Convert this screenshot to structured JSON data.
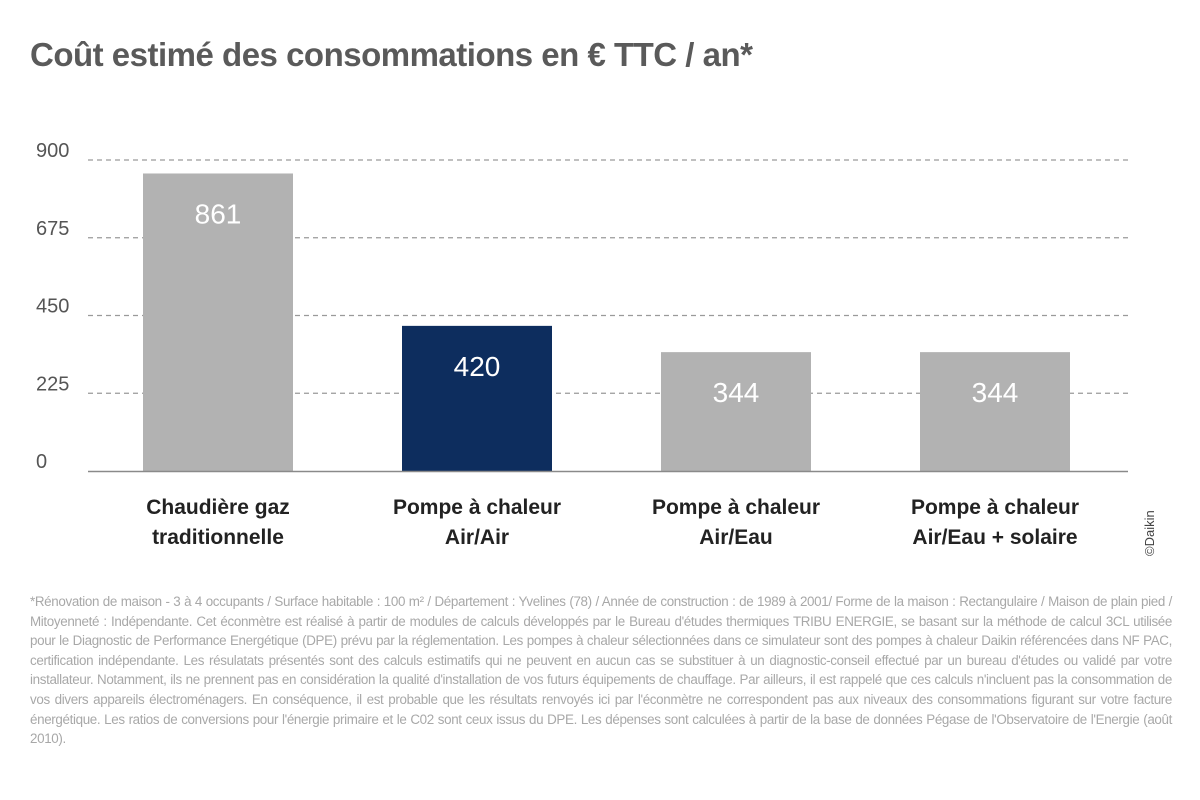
{
  "title": "Coût estimé des consommations en € TTC / an*",
  "colors": {
    "default_bar": "#b2b2b2",
    "highlight_bar": "#0d2d5e",
    "grid": "#9a9a9a",
    "axis": "#8a8a8a",
    "value_label": "#ffffff"
  },
  "chart_data": {
    "type": "bar",
    "title": "Coût estimé des consommations en € TTC / an*",
    "categories": [
      "Chaudière gaz traditionnelle",
      "Pompe à chaleur Air/Air",
      "Pompe à chaleur Air/Eau",
      "Pompe à chaleur Air/Eau + solaire"
    ],
    "category_lines": [
      [
        "Chaudière gaz",
        "traditionnelle"
      ],
      [
        "Pompe à chaleur",
        "Air/Air"
      ],
      [
        "Pompe à chaleur",
        "Air/Eau"
      ],
      [
        "Pompe à chaleur",
        "Air/Eau + solaire"
      ]
    ],
    "values": [
      861,
      420,
      344,
      344
    ],
    "highlight_index": 1,
    "yticks": [
      0,
      225,
      450,
      675,
      900
    ],
    "ylim": [
      0,
      900
    ],
    "grid": true,
    "grid_style": "dashed",
    "legend": "none"
  },
  "credit": "©Daikin",
  "footnote": "*Rénovation de maison - 3 à 4 occupants / Surface habitable : 100 m² / Département : Yvelines (78) / Année de construction : de 1989 à 2001/ Forme de la maison : Rectangulaire / Maison de plain pied / Mitoyenneté : Indépendante. Cet éconmètre est réalisé à partir de modules de calculs développés par le Bureau d'études thermiques TRIBU ENERGIE, se basant sur la méthode de calcul 3CL utilisée pour le Diagnostic de Performance Energétique (DPE) prévu par la réglementation. Les pompes à chaleur sélectionnées dans ce simulateur sont des pompes à chaleur Daikin référencées dans NF PAC, certification indépendante. Les résulatats présentés sont des calculs estimatifs qui ne peuvent en aucun cas se substituer à un diagnostic-conseil effectué par un bureau d'études ou validé par votre installateur. Notamment, ils ne prennent pas en considération la qualité d'installation de vos futurs équipements de chauffage. Par ailleurs, il est rappelé que ces calculs n'incluent pas la consommation de vos divers appareils électroménagers. En conséquence, il est probable que les résultats renvoyés ici par l'éconmètre ne correspondent pas aux niveaux des consommations figurant sur votre facture énergétique. Les ratios de conversions pour l'énergie primaire et le C02 sont ceux issus du DPE. Les dépenses sont calculées à partir de la base de données Pégase de l'Observatoire de l'Energie (août 2010)."
}
